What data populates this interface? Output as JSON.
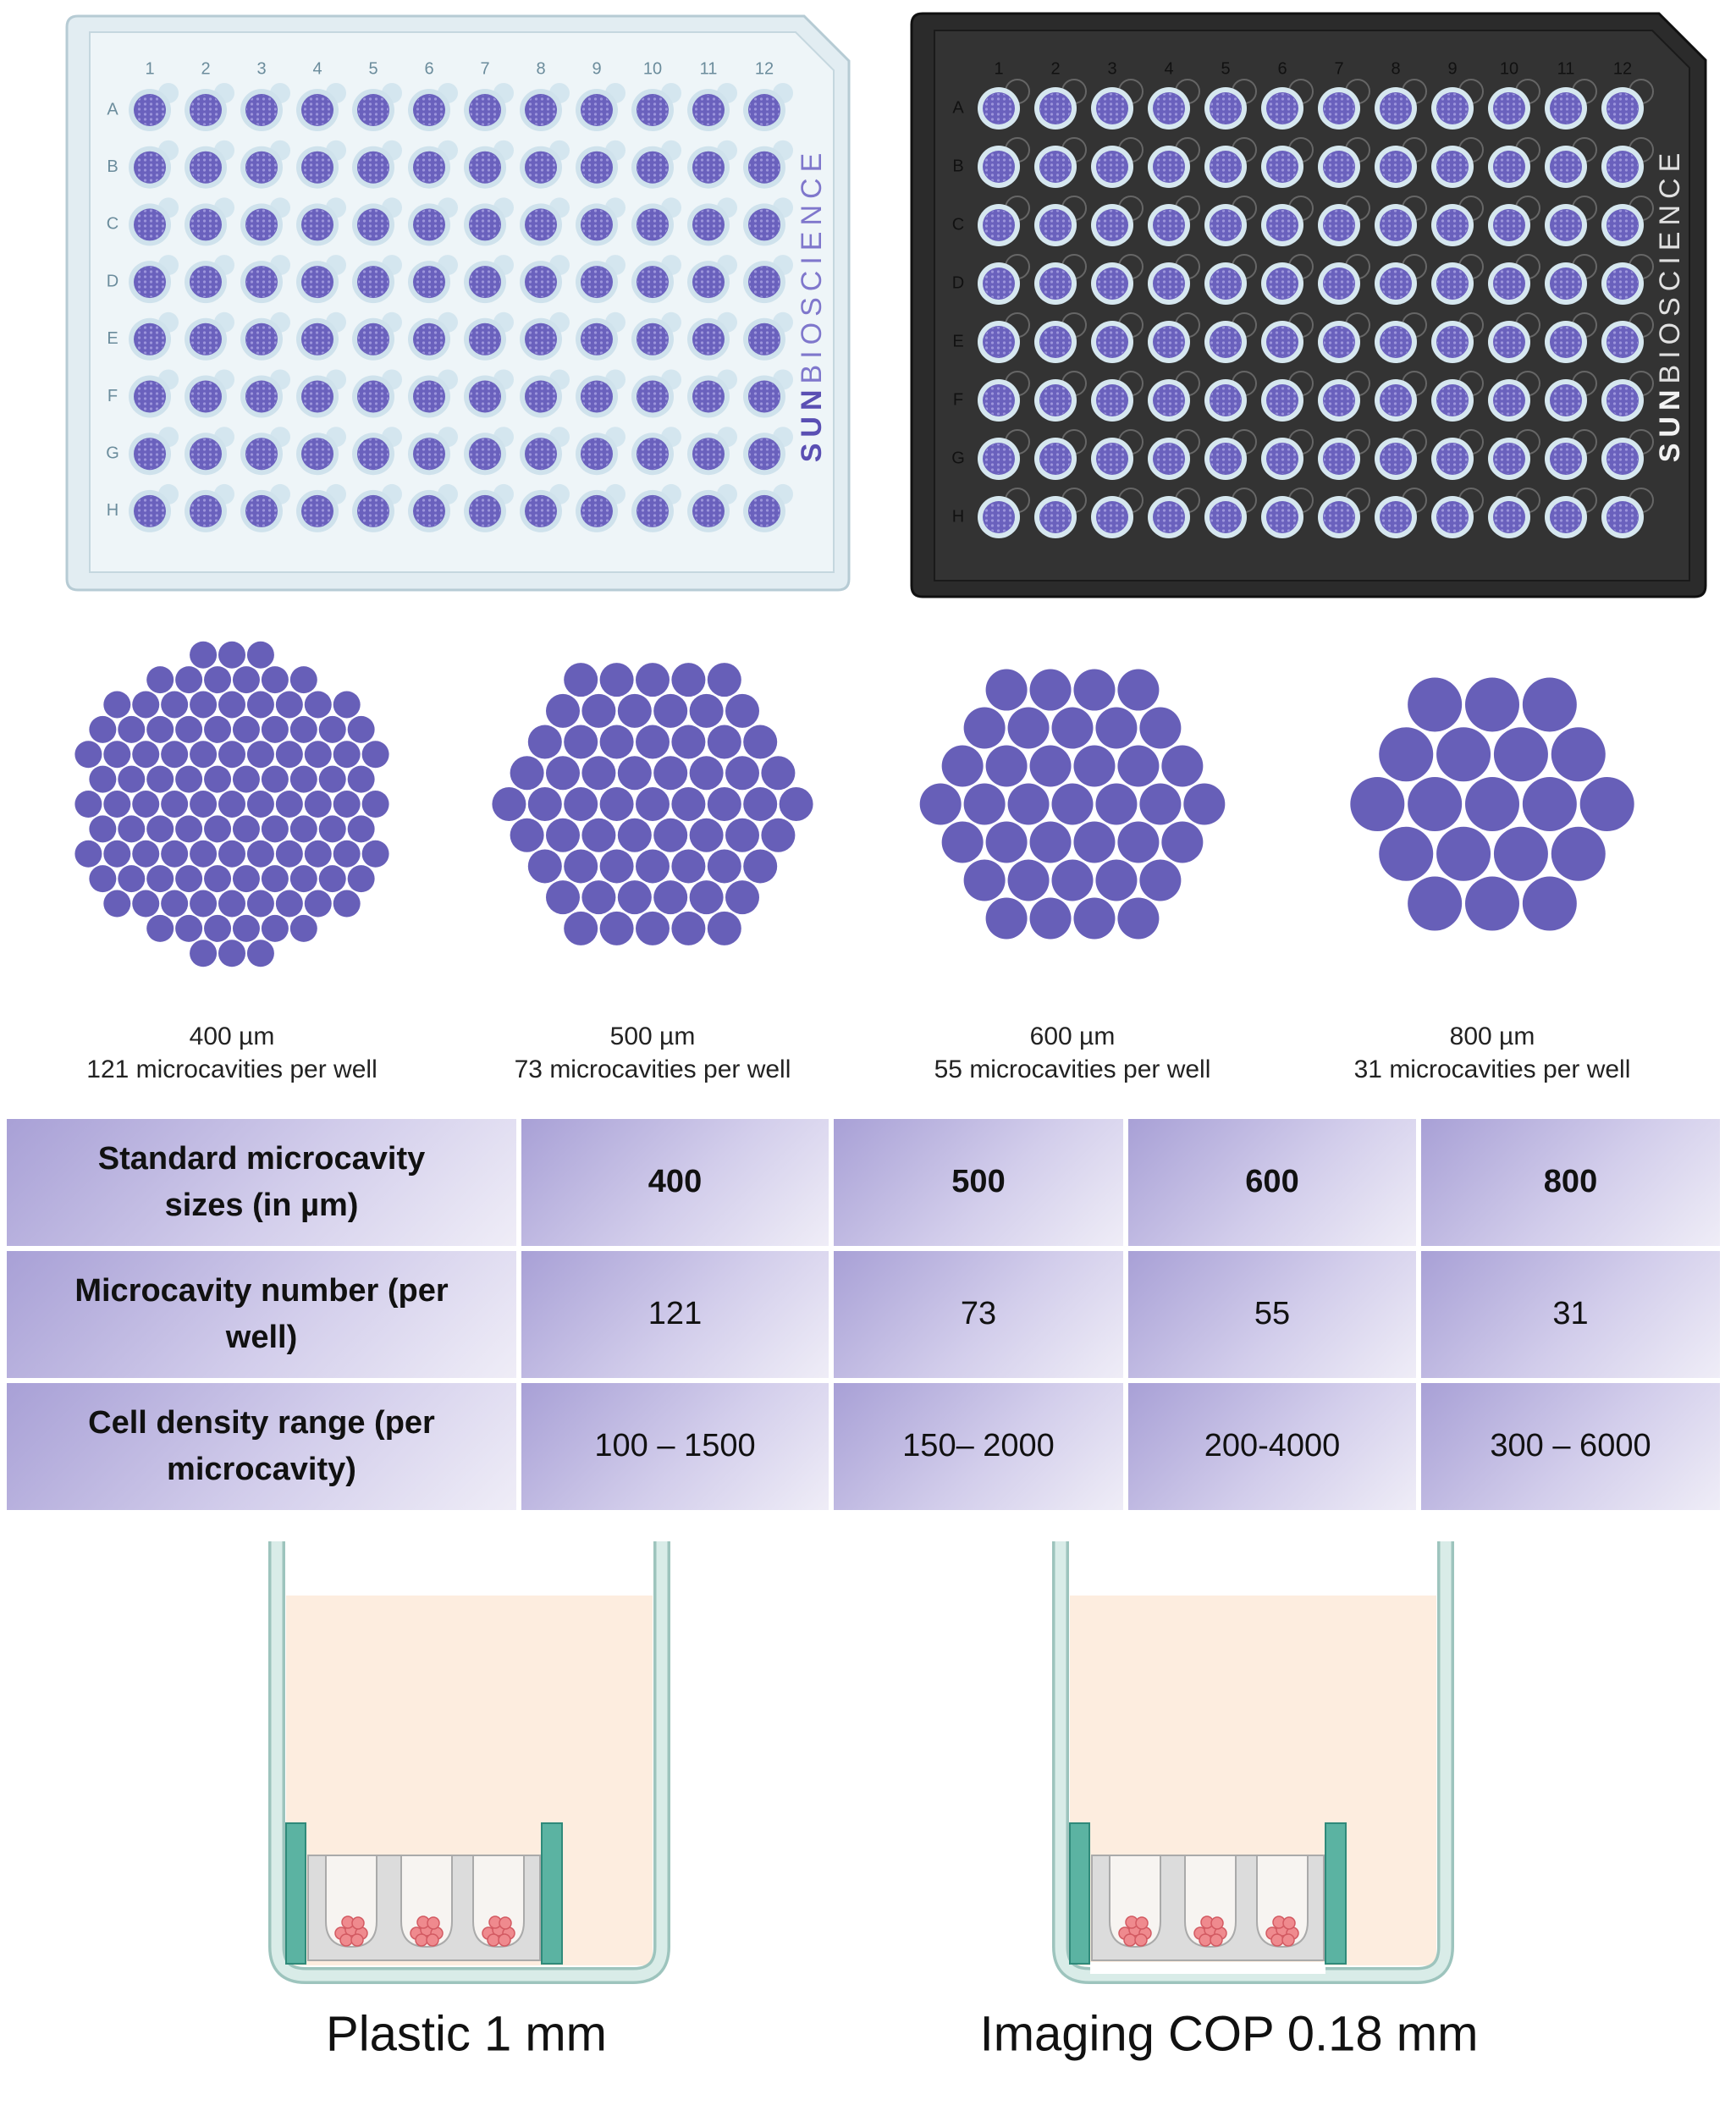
{
  "plate_labels": {
    "columns": [
      "1",
      "2",
      "3",
      "4",
      "5",
      "6",
      "7",
      "8",
      "9",
      "10",
      "11",
      "12"
    ],
    "rows": [
      "A",
      "B",
      "C",
      "D",
      "E",
      "F",
      "G",
      "H"
    ],
    "brand": [
      "SUN",
      "BIOSCIENCE"
    ]
  },
  "microcavity_patterns": [
    {
      "size": "400 µm",
      "count": "121 microcavities per well"
    },
    {
      "size": "500 µm",
      "count": "73 microcavities per well"
    },
    {
      "size": "600 µm",
      "count": "55 microcavities per well"
    },
    {
      "size": "800 µm",
      "count": "31 microcavities per well"
    }
  ],
  "table": {
    "rows": [
      [
        "Standard microcavity sizes (in µm)",
        "400",
        "500",
        "600",
        "800"
      ],
      [
        "Microcavity number (per well)",
        "121",
        "73",
        "55",
        "31"
      ],
      [
        "Cell density range (per microcavity)",
        "100 – 1500",
        "150– 2000",
        "200-4000",
        "300 – 6000"
      ]
    ]
  },
  "well_diagrams": [
    "Plastic 1 mm",
    "Imaging COP 0.18 mm"
  ]
}
